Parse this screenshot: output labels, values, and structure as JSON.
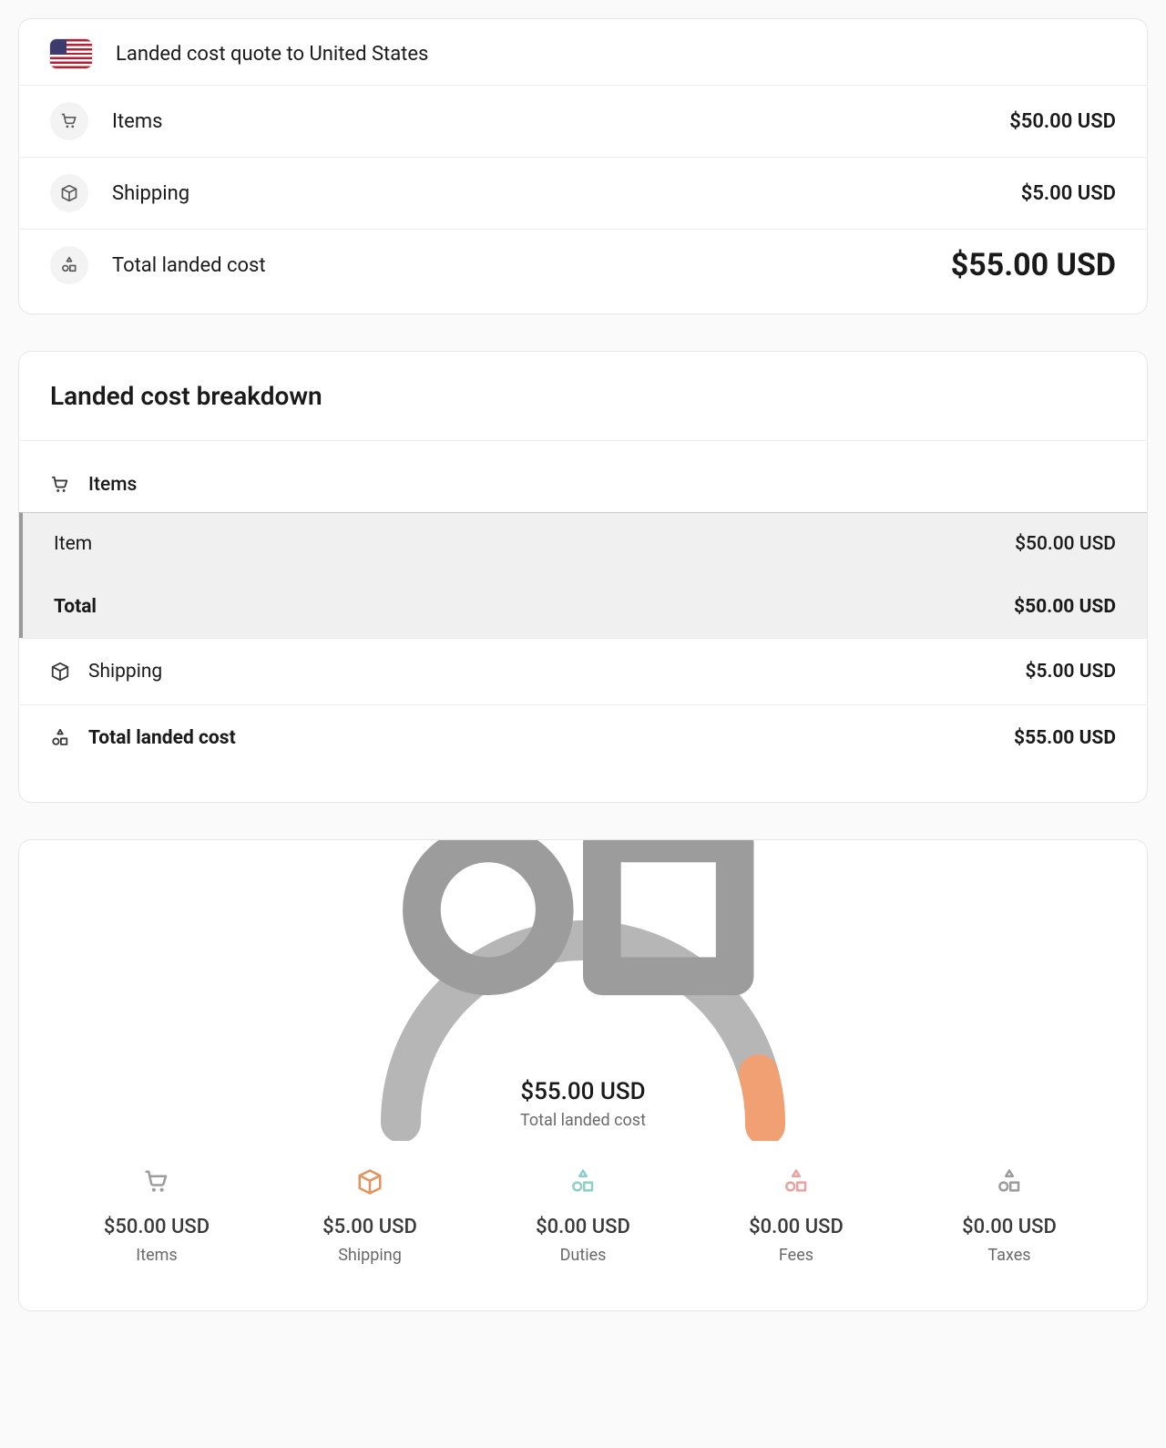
{
  "summary": {
    "title": "Landed cost quote to United States",
    "items_label": "Items",
    "items_value": "$50.00 USD",
    "shipping_label": "Shipping",
    "shipping_value": "$5.00 USD",
    "total_label": "Total landed cost",
    "total_value": "$55.00 USD"
  },
  "breakdown": {
    "heading": "Landed cost breakdown",
    "items_head": "Items",
    "item_row_label": "Item",
    "item_row_value": "$50.00 USD",
    "items_total_label": "Total",
    "items_total_value": "$50.00 USD",
    "shipping_label": "Shipping",
    "shipping_value": "$5.00 USD",
    "total_label": "Total landed cost",
    "total_value": "$55.00 USD"
  },
  "gauge": {
    "amount": "$55.00 USD",
    "label": "Total landed cost",
    "track_color": "#b6b6b6",
    "segments": [
      {
        "fraction": 0.91,
        "color": "#b6b6b6"
      },
      {
        "fraction": 0.09,
        "color": "#f0a072"
      }
    ]
  },
  "categories": [
    {
      "id": "items",
      "icon": "cart",
      "color": "#9c9c9c",
      "amount": "$50.00 USD",
      "label": "Items"
    },
    {
      "id": "shipping",
      "icon": "box",
      "color": "#e3935b",
      "amount": "$5.00 USD",
      "label": "Shipping"
    },
    {
      "id": "duties",
      "icon": "shapes",
      "color": "#8fcfc4",
      "amount": "$0.00 USD",
      "label": "Duties"
    },
    {
      "id": "fees",
      "icon": "shapes",
      "color": "#e7a2a2",
      "amount": "$0.00 USD",
      "label": "Fees"
    },
    {
      "id": "taxes",
      "icon": "shapes",
      "color": "#9c9c9c",
      "amount": "$0.00 USD",
      "label": "Taxes"
    }
  ],
  "colors": {
    "card_border": "#e6e6e6",
    "chip_bg": "#f3f3f3",
    "icon_gray": "#5a5a5a"
  }
}
